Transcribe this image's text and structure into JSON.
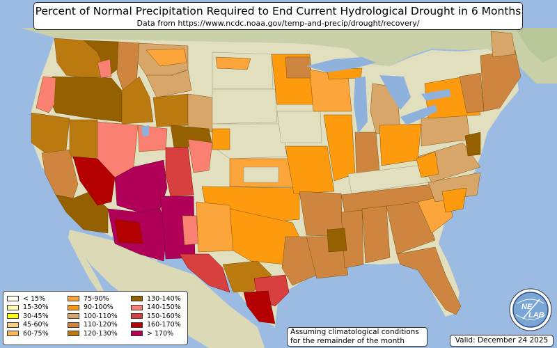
{
  "header": {
    "title": "Percent of Normal Precipitation Required to End Current Hydrological Drought in 6 Months",
    "subtitle": "Data from https://www.ncdc.noaa.gov/temp-and-precip/drought/recovery/"
  },
  "legend": {
    "items": [
      {
        "label": "< 15%",
        "color": "#fffff0"
      },
      {
        "label": "15-30%",
        "color": "#ffffb4"
      },
      {
        "label": "30-45%",
        "color": "#ffff00"
      },
      {
        "label": "45-60%",
        "color": "#f9cf8a"
      },
      {
        "label": "60-75%",
        "color": "#fbb65c"
      },
      {
        "label": "75-90%",
        "color": "#fca53a"
      },
      {
        "label": "90-100%",
        "color": "#fd9a0e"
      },
      {
        "label": "100-110%",
        "color": "#d9a66a"
      },
      {
        "label": "110-120%",
        "color": "#cd853f"
      },
      {
        "label": "120-130%",
        "color": "#ba7a10"
      },
      {
        "label": "130-140%",
        "color": "#956100"
      },
      {
        "label": "140-150%",
        "color": "#fa8072"
      },
      {
        "label": "150-160%",
        "color": "#d84040"
      },
      {
        "label": "160-170%",
        "color": "#b40000"
      },
      {
        "label": "> 170%",
        "color": "#b00058"
      }
    ]
  },
  "note": {
    "line1": "Assuming climatological conditions",
    "line2": "for the remainder of the month"
  },
  "valid": {
    "text": "Valid: December 24 2025"
  },
  "logo": {
    "text_top": "NE",
    "text_bottom": "LAB"
  },
  "colors": {
    "ocean": "#9bbbe3",
    "land": "#e2dfbf",
    "lake": "#8fb2dc"
  }
}
